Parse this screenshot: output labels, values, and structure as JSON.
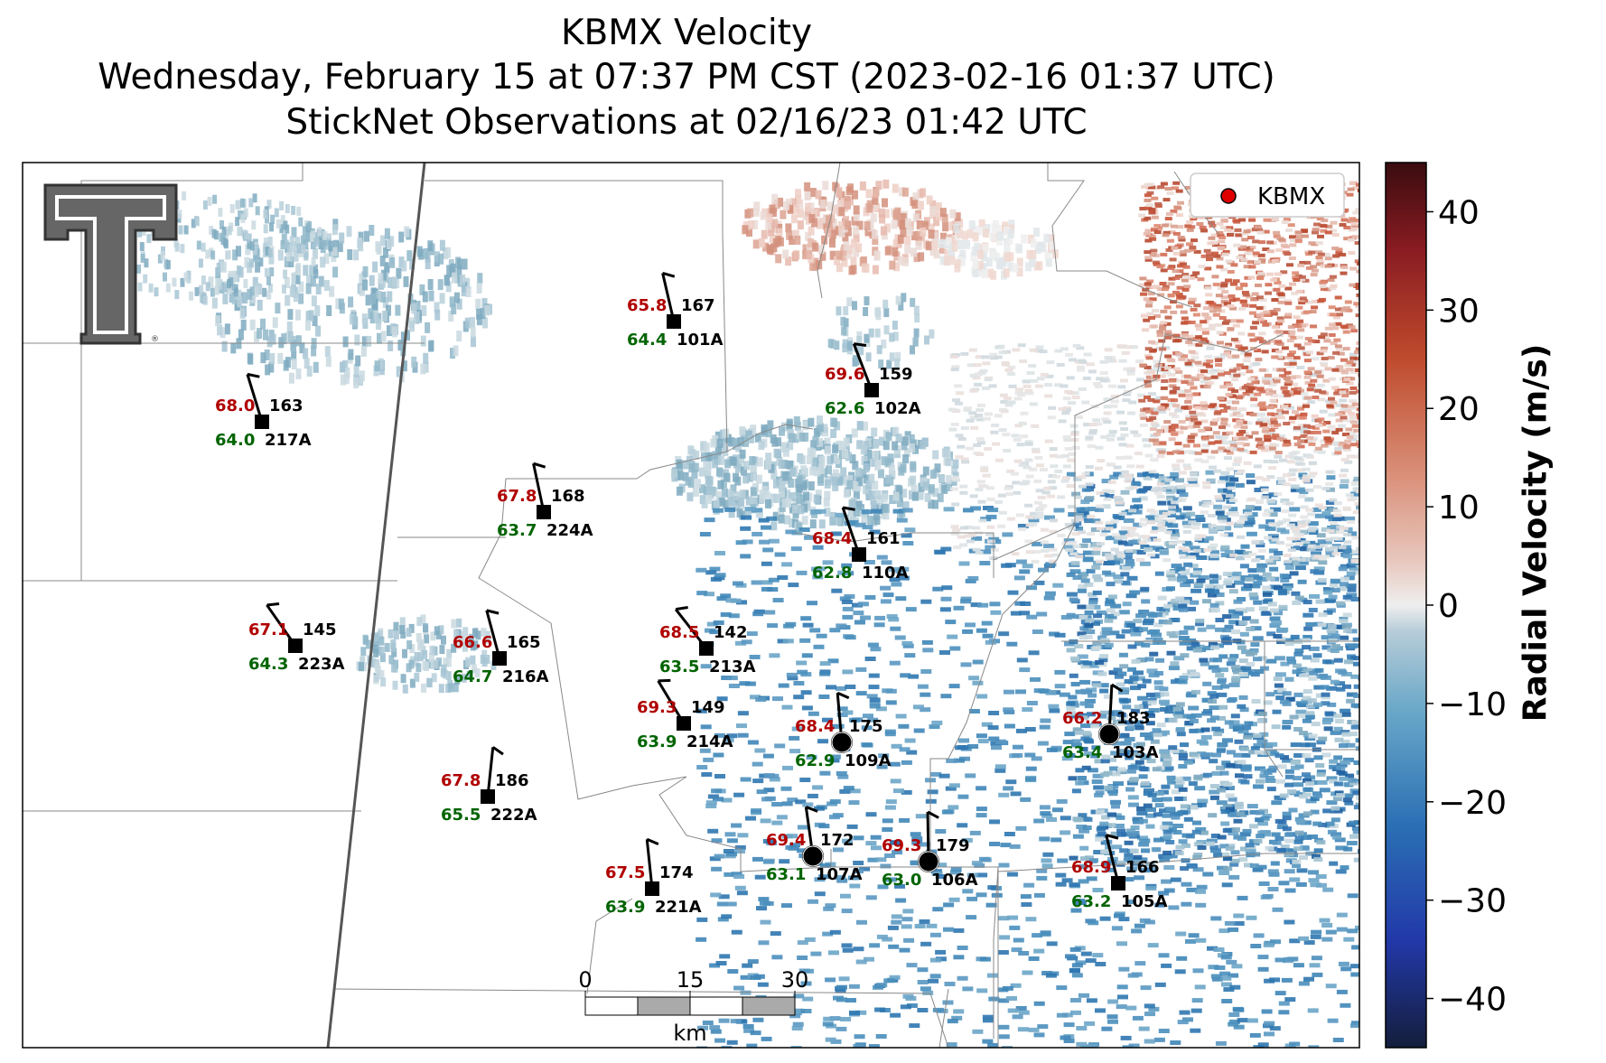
{
  "title": {
    "line1": "KBMX Velocity",
    "line2": "Wednesday, February 15 at 07:37 PM CST (2023-02-16 01:37 UTC)",
    "line3": "StickNet Observations at 02/16/23 01:42 UTC"
  },
  "legend": {
    "label": "KBMX",
    "marker_color": "#e00000",
    "position": "top-right"
  },
  "colorbar": {
    "label": "Radial Velocity (m/s)",
    "ticks": [
      "40",
      "30",
      "20",
      "10",
      "0",
      "−10",
      "−20",
      "−30",
      "−40"
    ],
    "range": [
      -45,
      45
    ]
  },
  "scale_bar": {
    "ticks": [
      "0",
      "15",
      "30"
    ],
    "unit": "km"
  },
  "logo": {
    "name": "Texas Tech University double-T logo"
  },
  "colors": {
    "temperature": "#b00000",
    "dewpoint": "#006400",
    "station": "#000000"
  },
  "stations": [
    {
      "id": "101A",
      "temp": "65.8",
      "dew": "64.4",
      "dir": "167",
      "marker": "square"
    },
    {
      "id": "102A",
      "temp": "69.6",
      "dew": "62.6",
      "dir": "159",
      "marker": "square"
    },
    {
      "id": "217A",
      "temp": "68.0",
      "dew": "64.0",
      "dir": "163",
      "marker": "square"
    },
    {
      "id": "224A",
      "temp": "67.8",
      "dew": "63.7",
      "dir": "168",
      "marker": "square"
    },
    {
      "id": "110A",
      "temp": "68.4",
      "dew": "62.8",
      "dir": "161",
      "marker": "square"
    },
    {
      "id": "223A",
      "temp": "67.1",
      "dew": "64.3",
      "dir": "145",
      "marker": "square"
    },
    {
      "id": "216A",
      "temp": "66.6",
      "dew": "64.7",
      "dir": "165",
      "marker": "square"
    },
    {
      "id": "213A",
      "temp": "68.5",
      "dew": "63.5",
      "dir": "142",
      "marker": "square"
    },
    {
      "id": "214A",
      "temp": "69.3",
      "dew": "63.9",
      "dir": "149",
      "marker": "square"
    },
    {
      "id": "109A",
      "temp": "68.4",
      "dew": "62.9",
      "dir": "175",
      "marker": "circle"
    },
    {
      "id": "103A",
      "temp": "66.2",
      "dew": "63.4",
      "dir": "183",
      "marker": "circle"
    },
    {
      "id": "222A",
      "temp": "67.8",
      "dew": "65.5",
      "dir": "186",
      "marker": "square"
    },
    {
      "id": "107A",
      "temp": "69.4",
      "dew": "63.1",
      "dir": "172",
      "marker": "circle"
    },
    {
      "id": "106A",
      "temp": "69.3",
      "dew": "63.0",
      "dir": "179",
      "marker": "circle"
    },
    {
      "id": "221A",
      "temp": "67.5",
      "dew": "63.9",
      "dir": "174",
      "marker": "square"
    },
    {
      "id": "105A",
      "temp": "68.9",
      "dew": "63.2",
      "dir": "166",
      "marker": "square"
    }
  ]
}
